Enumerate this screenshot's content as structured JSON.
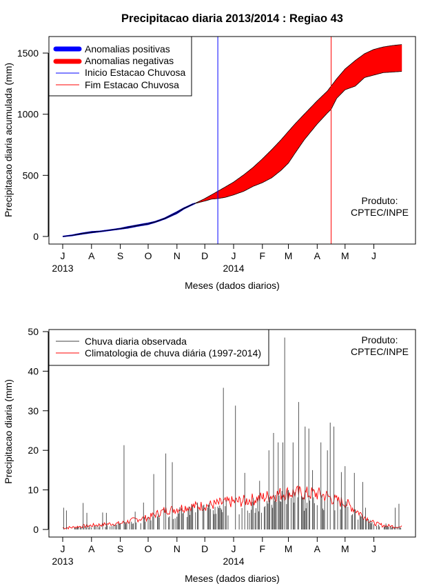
{
  "page_title": "Precipitacao diaria 2013/2014 : Regiao 43",
  "chart_data": [
    {
      "type": "area",
      "title": "Precipitacao diaria 2013/2014 : Regiao 43",
      "xlabel": "Meses (dados diarios)",
      "ylabel": "Precipitacao diaria acumulada (mm)",
      "ylim": [
        0,
        1600
      ],
      "yticks": [
        0,
        500,
        1000,
        1500
      ],
      "x_day_range": [
        0,
        365
      ],
      "month_ticks": [
        {
          "label": "J",
          "day": 0
        },
        {
          "label": "A",
          "day": 31
        },
        {
          "label": "S",
          "day": 62
        },
        {
          "label": "O",
          "day": 92
        },
        {
          "label": "N",
          "day": 123
        },
        {
          "label": "D",
          "day": 153
        },
        {
          "label": "J",
          "day": 184
        },
        {
          "label": "F",
          "day": 215
        },
        {
          "label": "M",
          "day": 243
        },
        {
          "label": "A",
          "day": 274
        },
        {
          "label": "M",
          "day": 304
        },
        {
          "label": "J",
          "day": 335
        }
      ],
      "year_labels": [
        {
          "label": "2013",
          "day": 0
        },
        {
          "label": "2014",
          "day": 184
        }
      ],
      "legend": {
        "placement": "top-left",
        "items": [
          {
            "label": "Anomalias positivas",
            "color": "#0000ff",
            "kind": "thick"
          },
          {
            "label": "Anomalias negativas",
            "color": "#ff0000",
            "kind": "thick"
          },
          {
            "label": "Inicio Estacao Chuvosa",
            "color": "#0000ff",
            "kind": "thin"
          },
          {
            "label": "Fim Estacao Chuvosa",
            "color": "#ff0000",
            "kind": "thin"
          }
        ]
      },
      "annotation": {
        "line1": "Produto:",
        "line2": "CPTEC/INPE",
        "placement": "right"
      },
      "season_start_day": 167,
      "season_end_day": 289,
      "series": [
        {
          "name": "Climatologia acumulada",
          "days": [
            0,
            10,
            20,
            31,
            40,
            50,
            62,
            70,
            80,
            92,
            100,
            110,
            123,
            130,
            140,
            153,
            160,
            167,
            175,
            184,
            195,
            205,
            215,
            225,
            235,
            243,
            250,
            260,
            274,
            285,
            289,
            295,
            304,
            315,
            325,
            335,
            345,
            355,
            365
          ],
          "values": [
            0,
            8,
            20,
            32,
            40,
            50,
            62,
            70,
            85,
            100,
            118,
            145,
            190,
            225,
            262,
            310,
            340,
            370,
            405,
            445,
            505,
            565,
            635,
            710,
            790,
            860,
            920,
            1000,
            1110,
            1190,
            1230,
            1290,
            1370,
            1440,
            1495,
            1530,
            1550,
            1562,
            1570
          ]
        },
        {
          "name": "Observado acumulado",
          "days": [
            0,
            10,
            20,
            31,
            40,
            50,
            62,
            70,
            80,
            92,
            100,
            110,
            123,
            130,
            140,
            153,
            160,
            167,
            175,
            184,
            195,
            205,
            215,
            225,
            235,
            243,
            250,
            260,
            274,
            285,
            289,
            295,
            304,
            315,
            325,
            335,
            345,
            355,
            365
          ],
          "values": [
            0,
            10,
            25,
            38,
            42,
            52,
            65,
            78,
            92,
            108,
            122,
            150,
            200,
            230,
            265,
            290,
            305,
            310,
            320,
            340,
            370,
            410,
            440,
            480,
            540,
            600,
            680,
            790,
            920,
            1010,
            1040,
            1130,
            1200,
            1230,
            1300,
            1320,
            1340,
            1345,
            1350
          ]
        }
      ],
      "colors": {
        "positive": "#0000ff",
        "negative": "#ff0000",
        "season_start": "#0000ff",
        "season_end": "#ff0000"
      }
    },
    {
      "type": "bar",
      "xlabel": "Meses (dados diarios)",
      "ylabel": "Precipitacao diaria (mm)",
      "ylim": [
        0,
        50
      ],
      "yticks": [
        0,
        10,
        20,
        30,
        40,
        50
      ],
      "x_day_range": [
        0,
        365
      ],
      "month_ticks": [
        {
          "label": "J",
          "day": 0
        },
        {
          "label": "A",
          "day": 31
        },
        {
          "label": "S",
          "day": 62
        },
        {
          "label": "O",
          "day": 92
        },
        {
          "label": "N",
          "day": 123
        },
        {
          "label": "D",
          "day": 153
        },
        {
          "label": "J",
          "day": 184
        },
        {
          "label": "F",
          "day": 215
        },
        {
          "label": "M",
          "day": 243
        },
        {
          "label": "A",
          "day": 274
        },
        {
          "label": "M",
          "day": 304
        },
        {
          "label": "J",
          "day": 335
        }
      ],
      "year_labels": [
        {
          "label": "2013",
          "day": 0
        },
        {
          "label": "2014",
          "day": 184
        }
      ],
      "legend": {
        "placement": "top-left",
        "items": [
          {
            "label": "Chuva diaria observada",
            "color": "#404040"
          },
          {
            "label": "Climatologia de chuva diária (1997-2014)",
            "color": "#ff0000"
          }
        ]
      },
      "annotation": {
        "line1": "Produto:",
        "line2": "CPTEC/INPE",
        "placement": "top-right"
      },
      "observed_peaks": [
        {
          "day": 1,
          "value": 5.5
        },
        {
          "day": 4,
          "value": 4.8
        },
        {
          "day": 22,
          "value": 6.7
        },
        {
          "day": 26,
          "value": 4.2
        },
        {
          "day": 43,
          "value": 4.3
        },
        {
          "day": 47,
          "value": 4.2
        },
        {
          "day": 66,
          "value": 21.3
        },
        {
          "day": 78,
          "value": 4.5
        },
        {
          "day": 87,
          "value": 6.8
        },
        {
          "day": 98,
          "value": 14.0
        },
        {
          "day": 111,
          "value": 19.2
        },
        {
          "day": 118,
          "value": 17.0
        },
        {
          "day": 136,
          "value": 5.8
        },
        {
          "day": 145,
          "value": 6.8
        },
        {
          "day": 157,
          "value": 6.3
        },
        {
          "day": 173,
          "value": 35.8
        },
        {
          "day": 186,
          "value": 31.3
        },
        {
          "day": 196,
          "value": 14.3
        },
        {
          "day": 212,
          "value": 12.3
        },
        {
          "day": 222,
          "value": 20.0
        },
        {
          "day": 227,
          "value": 24.4
        },
        {
          "day": 232,
          "value": 22.0
        },
        {
          "day": 237,
          "value": 22.0
        },
        {
          "day": 239,
          "value": 48.5
        },
        {
          "day": 248,
          "value": 22.0
        },
        {
          "day": 254,
          "value": 32.2
        },
        {
          "day": 261,
          "value": 26.0
        },
        {
          "day": 265,
          "value": 25.5
        },
        {
          "day": 269,
          "value": 15.0
        },
        {
          "day": 278,
          "value": 22.0
        },
        {
          "day": 285,
          "value": 20.0
        },
        {
          "day": 288,
          "value": 27.0
        },
        {
          "day": 292,
          "value": 26.0
        },
        {
          "day": 300,
          "value": 14.5
        },
        {
          "day": 304,
          "value": 16.0
        },
        {
          "day": 314,
          "value": 14.3
        },
        {
          "day": 323,
          "value": 12.0
        },
        {
          "day": 326,
          "value": 5.5
        },
        {
          "day": 348,
          "value": 1.5
        },
        {
          "day": 358,
          "value": 5.5
        },
        {
          "day": 362,
          "value": 6.5
        }
      ],
      "climatology": {
        "days": [
          0,
          10,
          20,
          31,
          40,
          50,
          62,
          70,
          80,
          92,
          100,
          110,
          123,
          130,
          140,
          153,
          160,
          167,
          175,
          184,
          195,
          205,
          215,
          225,
          235,
          243,
          250,
          260,
          274,
          285,
          295,
          304,
          315,
          325,
          335,
          345,
          355,
          365
        ],
        "values": [
          0.4,
          0.5,
          0.8,
          1.0,
          1.2,
          1.4,
          1.5,
          2.0,
          2.6,
          3.0,
          3.8,
          4.8,
          5.2,
          5.6,
          5.8,
          6.0,
          6.2,
          6.5,
          6.8,
          7.0,
          7.2,
          7.6,
          8.0,
          8.6,
          9.0,
          9.2,
          9.3,
          9.1,
          9.0,
          8.4,
          7.2,
          6.8,
          5.0,
          3.2,
          1.6,
          1.0,
          0.8,
          0.6
        ]
      },
      "colors": {
        "observed": "#404040",
        "climatology": "#ff0000"
      }
    }
  ]
}
